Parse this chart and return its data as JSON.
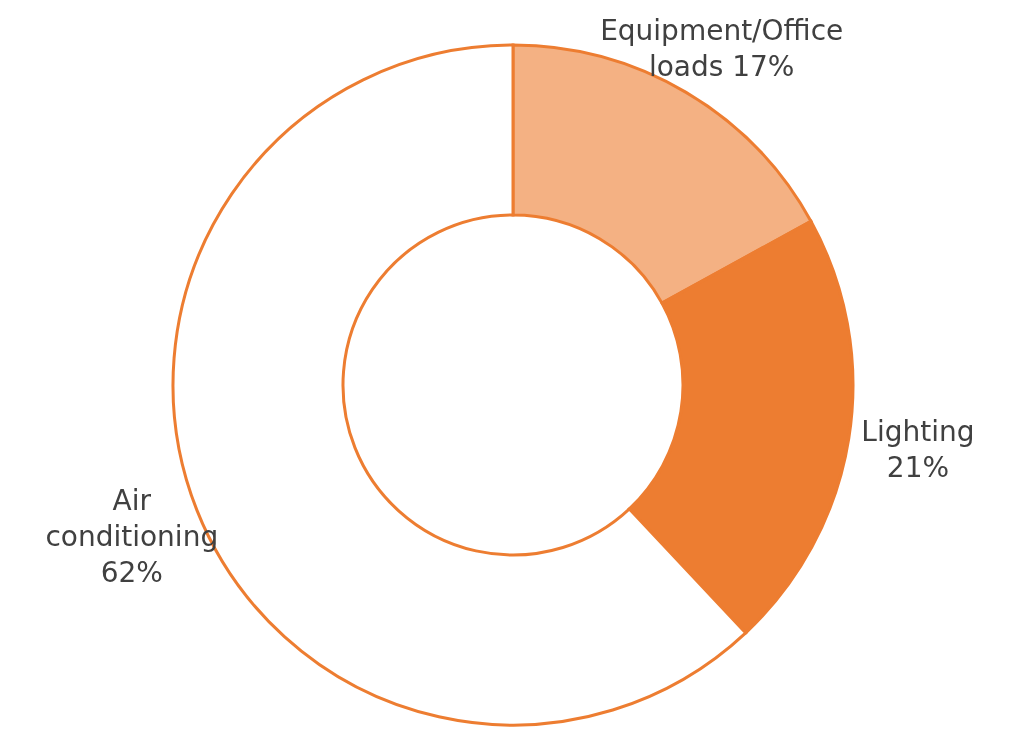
{
  "chart_data": {
    "type": "donut",
    "categories": [
      "Equipment/Office loads",
      "Lighting",
      "Air conditioning"
    ],
    "values": [
      17,
      21,
      62
    ],
    "colors": [
      "#f4b183",
      "#ed7d31",
      "#ffffff"
    ],
    "value_labels": [
      "17%",
      "21%",
      "62%"
    ],
    "legend": false
  }
}
